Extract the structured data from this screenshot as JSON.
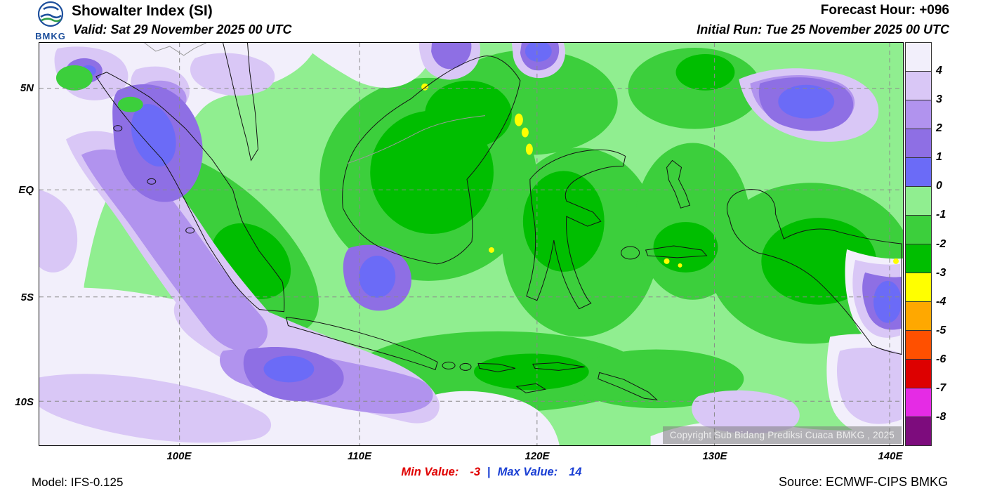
{
  "header": {
    "logo_text": "BMKG",
    "title": "Showalter Index (SI)",
    "valid_label": "Valid: Sat 29 November 2025 00 UTC",
    "forecast_hour": "Forecast Hour: +096",
    "initial_run": "Initial Run: Tue 25 November 2025 00 UTC"
  },
  "map": {
    "lat_labels": [
      "5N",
      "EQ",
      "5S",
      "10S"
    ],
    "lon_labels": [
      "100E",
      "110E",
      "120E",
      "130E",
      "140E"
    ],
    "copyright": "Copyright Sub Bidang Prediksi Cuaca BMKG , 2025"
  },
  "colorbar": {
    "labels": [
      "4",
      "3",
      "2",
      "1",
      "0",
      "-1",
      "-2",
      "-3",
      "-4",
      "-5",
      "-6",
      "-7",
      "-8"
    ],
    "colors": [
      "#f2effb",
      "#d9c7f6",
      "#b193ee",
      "#8e6fe4",
      "#6b6bf7",
      "#90ee90",
      "#3ccf3c",
      "#00be00",
      "#ffff00",
      "#ffa800",
      "#ff5000",
      "#dd0000",
      "#e52be5",
      "#7d0c7d"
    ]
  },
  "footer": {
    "model": "Model: IFS-0.125",
    "min_label": "Min Value:",
    "min_value": "-3",
    "separator": "|",
    "max_label": "Max Value:",
    "max_value": "14",
    "source": "Source: ECMWF-CIPS BMKG"
  },
  "chart_data": {
    "type": "heatmap",
    "title": "Showalter Index (SI)",
    "valid": "Sat 29 November 2025 00 UTC",
    "initial_run": "Tue 25 November 2025 00 UTC",
    "forecast_hour": "+096",
    "model": "IFS-0.125",
    "source": "ECMWF-CIPS BMKG",
    "region": {
      "lat_ticks": [
        "5N",
        "EQ",
        "5S",
        "10S"
      ],
      "lon_ticks": [
        "100E",
        "110E",
        "120E",
        "130E",
        "140E"
      ]
    },
    "scale_levels": [
      4,
      3,
      2,
      1,
      0,
      -1,
      -2,
      -3,
      -4,
      -5,
      -6,
      -7,
      -8
    ],
    "min_value": -3,
    "max_value": 14,
    "legend_position": "right"
  }
}
